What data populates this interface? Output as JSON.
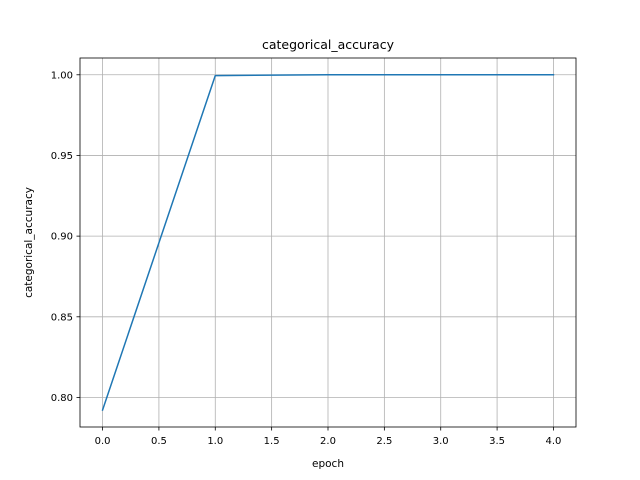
{
  "chart_data": {
    "type": "line",
    "title": "categorical_accuracy",
    "xlabel": "epoch",
    "ylabel": "categorical_accuracy",
    "xlim": [
      -0.2,
      4.2
    ],
    "ylim": [
      0.7817,
      1.0104
    ],
    "xticks": [
      0.0,
      0.5,
      1.0,
      1.5,
      2.0,
      2.5,
      3.0,
      3.5,
      4.0
    ],
    "xtick_labels": [
      "0.0",
      "0.5",
      "1.0",
      "1.5",
      "2.0",
      "2.5",
      "3.0",
      "3.5",
      "4.0"
    ],
    "yticks": [
      0.8,
      0.85,
      0.9,
      0.95,
      1.0
    ],
    "ytick_labels": [
      "0.80",
      "0.85",
      "0.90",
      "0.95",
      "1.00"
    ],
    "grid": true,
    "series": [
      {
        "color": "#1f77b4",
        "x": [
          0,
          1,
          2,
          3,
          4
        ],
        "y": [
          0.7922,
          0.9995,
          1.0,
          1.0,
          1.0
        ]
      }
    ]
  }
}
